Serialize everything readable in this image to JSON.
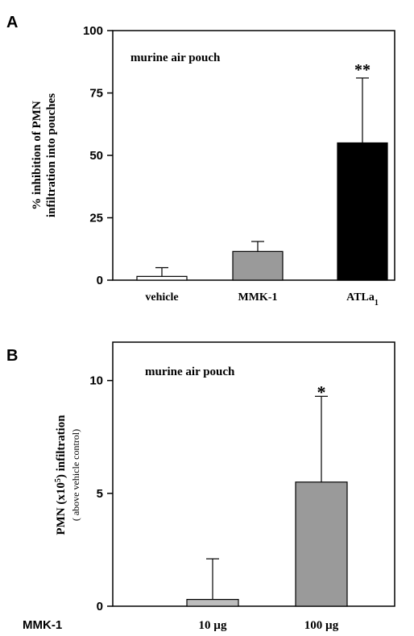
{
  "figure": {
    "panels": [
      {
        "label": "A",
        "annotation": "murine air pouch",
        "ylabel_line1": "% inhibition of PMN",
        "ylabel_line2": "infiltration into pouches"
      },
      {
        "label": "B",
        "annotation": "murine air pouch",
        "ylabel_main": "PMN (x10",
        "ylabel_sup": "5",
        "ylabel_tail": ") infiltration",
        "ylabel_sub": "( above vehicle control)",
        "row_label": "MMK-1"
      }
    ]
  },
  "chart_data": [
    {
      "type": "bar",
      "categories": [
        "vehicle",
        "MMK-1",
        "ATLa1"
      ],
      "category_labels": [
        {
          "main": "vehicle",
          "sub": ""
        },
        {
          "main": "MMK-1",
          "sub": ""
        },
        {
          "main": "ATLa",
          "sub": "1"
        }
      ],
      "values": [
        1.5,
        11.5,
        55
      ],
      "error_upper": [
        5,
        15.5,
        81
      ],
      "significance": [
        "",
        "",
        "**"
      ],
      "bar_colors": [
        "#ffffff",
        "#9a9a9a",
        "#000000"
      ],
      "ylim": [
        0,
        100
      ],
      "yticks": [
        0,
        25,
        50,
        75,
        100
      ],
      "ylabel": "% inhibition of PMN infiltration into pouches",
      "xlabel": ""
    },
    {
      "type": "bar",
      "categories": [
        "10 µg",
        "100 µg"
      ],
      "values": [
        0.3,
        5.5
      ],
      "error_upper": [
        2.1,
        9.3
      ],
      "significance": [
        "",
        "*"
      ],
      "bar_colors": [
        "#bdbdbd",
        "#9a9a9a"
      ],
      "ylim": [
        0,
        11.7
      ],
      "yticks": [
        0,
        5,
        10
      ],
      "ylabel": "PMN (x10^5) infiltration ( above vehicle control)",
      "xlabel": "MMK-1"
    }
  ]
}
